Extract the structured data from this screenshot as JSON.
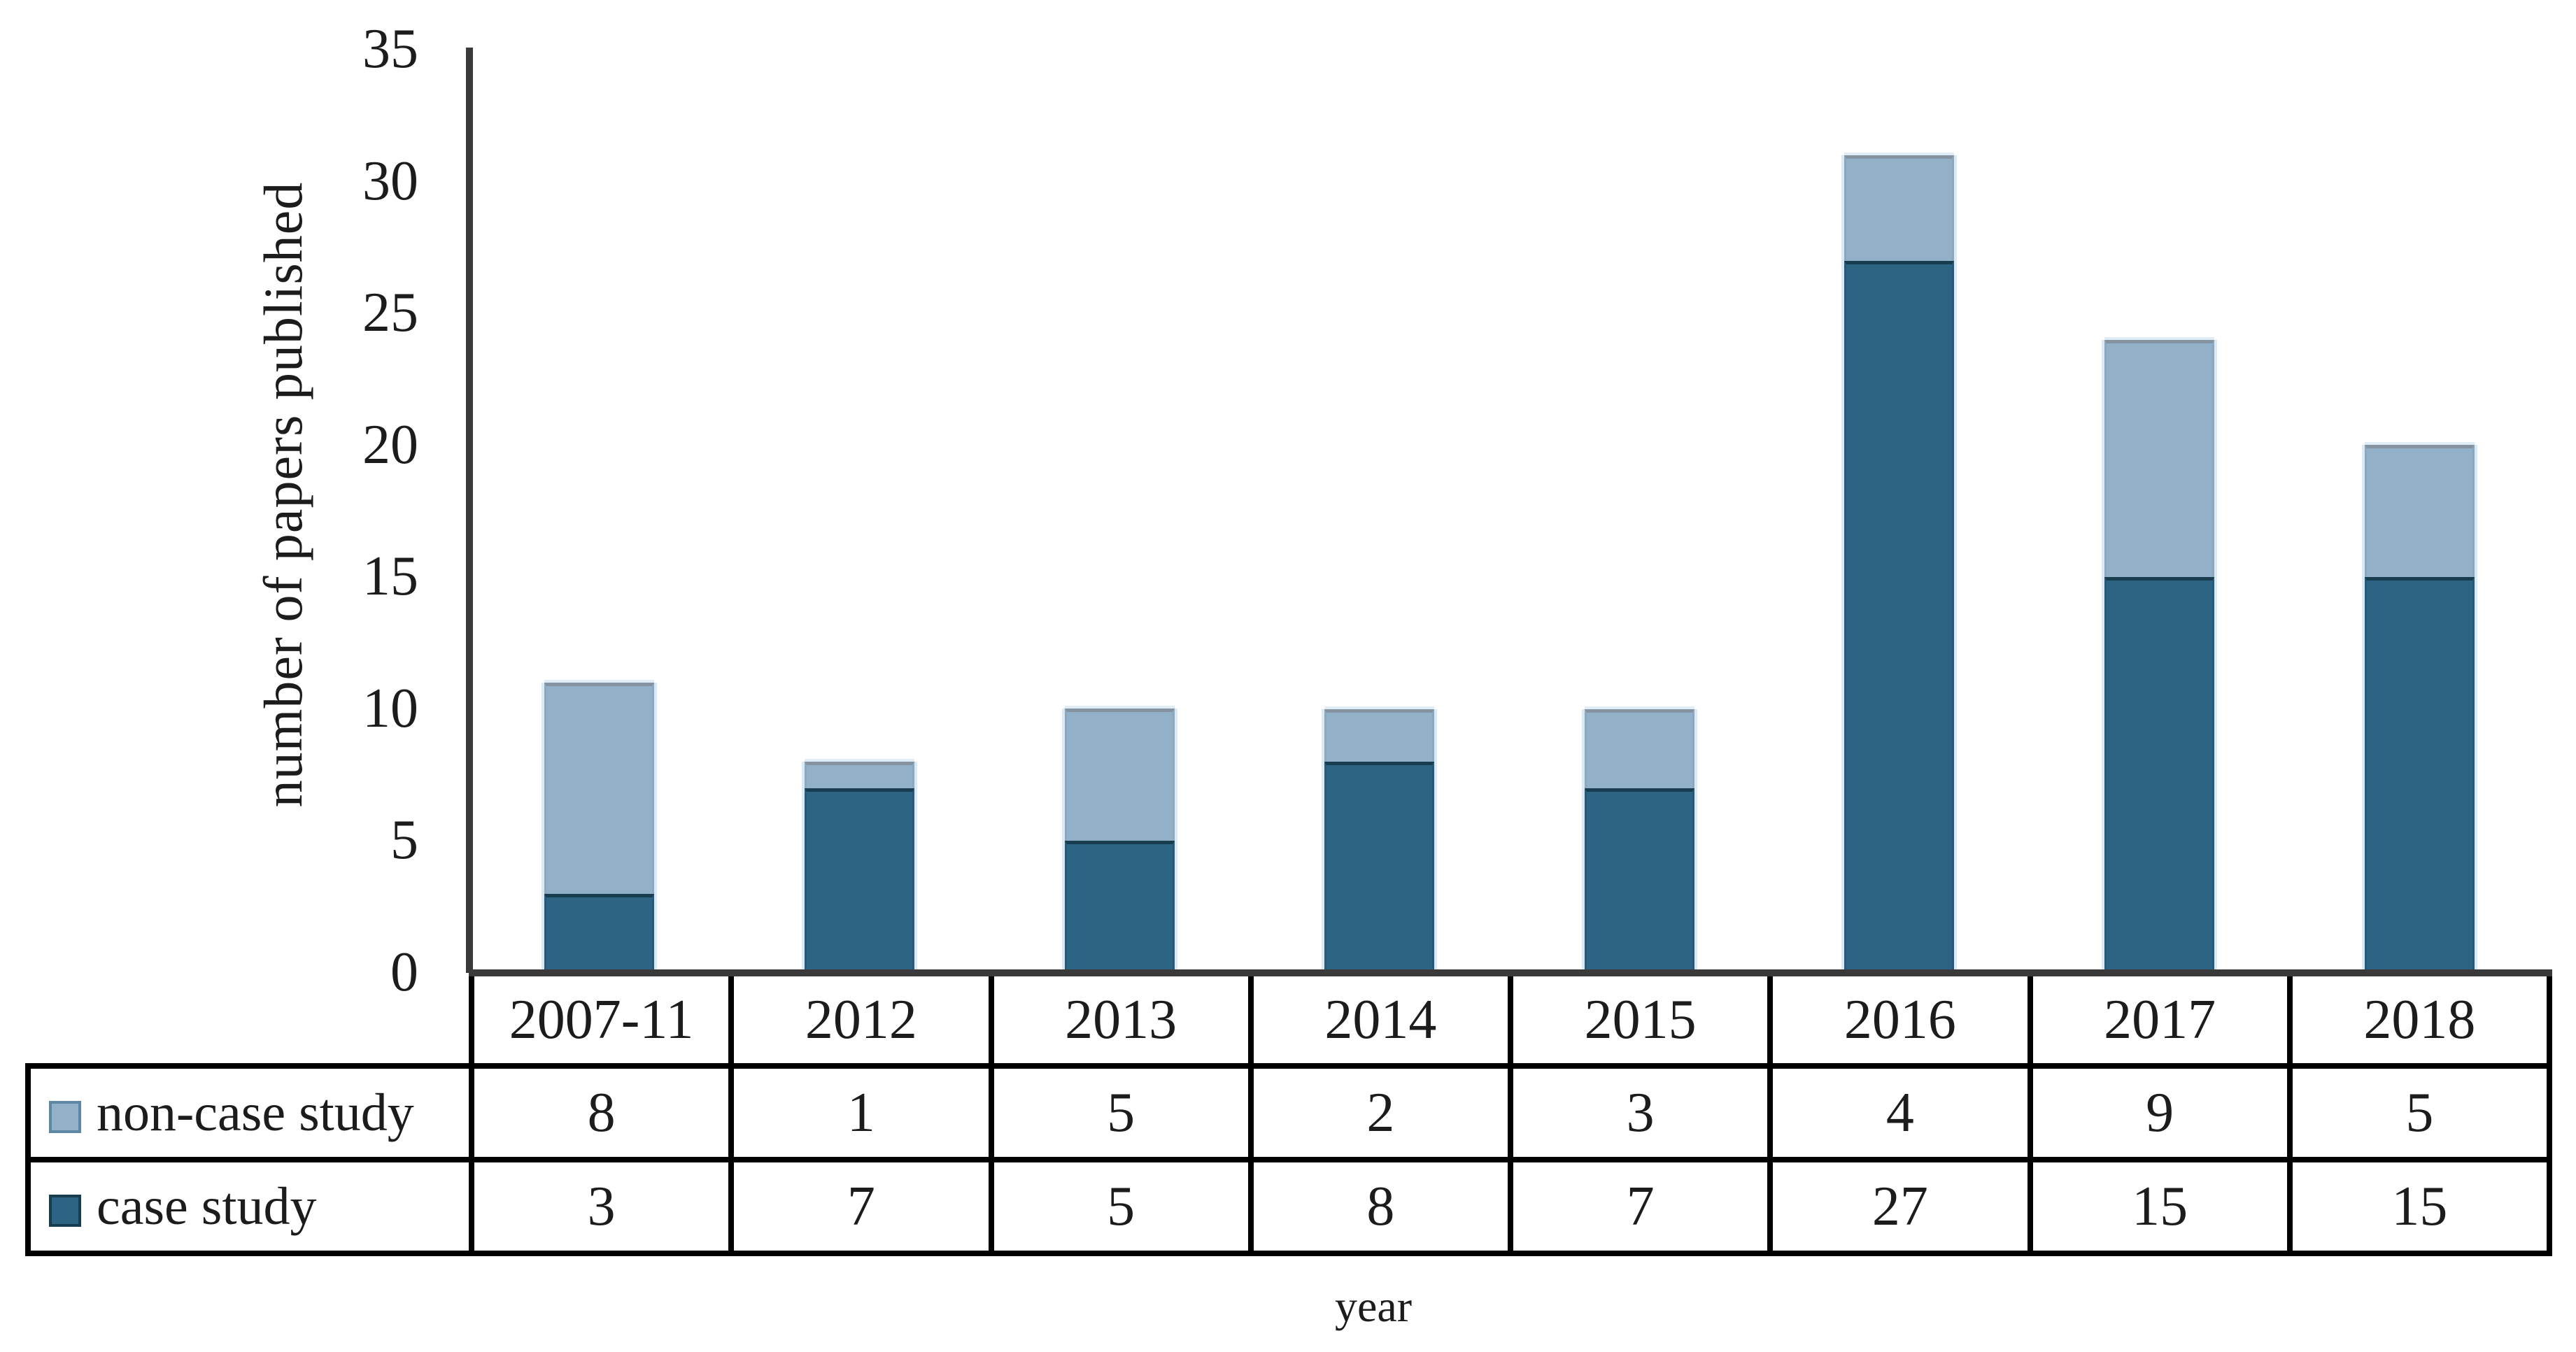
{
  "figure": {
    "background": "#ffffff"
  },
  "chart_data": {
    "type": "bar",
    "stacked": true,
    "title": "",
    "xlabel": "year",
    "ylabel": "number of papers published",
    "categories": [
      "2007-11",
      "2012",
      "2013",
      "2014",
      "2015",
      "2016",
      "2017",
      "2018"
    ],
    "series": [
      {
        "name": "non-case study",
        "color": "#92b0c7",
        "values": [
          8,
          1,
          5,
          2,
          3,
          4,
          9,
          5
        ]
      },
      {
        "name": "case study",
        "color": "#2d6484",
        "values": [
          3,
          7,
          5,
          8,
          7,
          27,
          15,
          15
        ]
      }
    ],
    "stack_bottom_to_top": [
      "case study",
      "non-case study"
    ],
    "totals": [
      11,
      8,
      10,
      10,
      10,
      31,
      24,
      20
    ],
    "ylim": [
      0,
      35
    ],
    "yticks": [
      0,
      5,
      10,
      15,
      20,
      25,
      30,
      35
    ],
    "grid": false,
    "legend_position": "table-left"
  },
  "table": {
    "corner_label": "",
    "column_headers": [
      "2007-11",
      "2012",
      "2013",
      "2014",
      "2015",
      "2016",
      "2017",
      "2018"
    ],
    "rows": [
      {
        "label": "non-case study",
        "swatch_color": "#92b0c7",
        "values": [
          8,
          1,
          5,
          2,
          3,
          4,
          9,
          5
        ]
      },
      {
        "label": "case study",
        "swatch_color": "#2d6484",
        "values": [
          3,
          7,
          5,
          8,
          7,
          27,
          15,
          15
        ]
      }
    ]
  },
  "colors": {
    "non_case_study_fill": "#92b0c7",
    "case_study_fill": "#2d6484",
    "axis_line": "#3a3a3a",
    "table_border": "#000000",
    "text": "#1c1c1c"
  }
}
